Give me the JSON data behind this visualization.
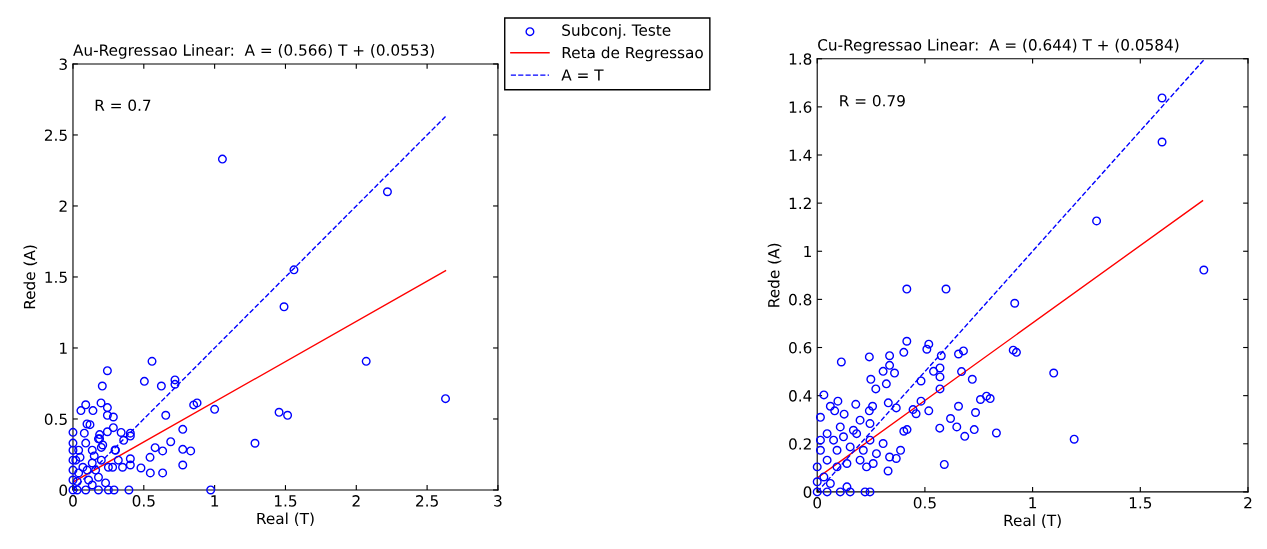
{
  "chart_data": [
    {
      "type": "scatter",
      "title": "Au-Regressao Linear:  A = (0.566) T + (0.0553)",
      "xlabel": "Real (T)",
      "ylabel": "Rede (A)",
      "xlim": [
        0,
        3
      ],
      "ylim": [
        0,
        3
      ],
      "xticks": [
        0,
        0.5,
        1,
        1.5,
        2,
        2.5,
        3
      ],
      "yticks": [
        0,
        0.5,
        1,
        1.5,
        2,
        2.5,
        3
      ],
      "grid": false,
      "legend": "top right",
      "annotations": [
        "R = 0.7"
      ],
      "series": [
        {
          "name": "Subconj. Teste",
          "marker": "circle",
          "color": "#0000ff",
          "x": [
            1.055,
            2.22,
            1.56,
            1.49,
            2.07,
            2.63,
            1.0,
            1.455,
            1.515,
            1.285,
            0.972,
            0.558,
            0.504,
            0.624,
            0.72,
            0.72,
            0.243,
            0.207,
            0.852,
            0.876,
            0.655,
            0.775,
            0.69,
            0.775,
            0.831,
            0.58,
            0.633,
            0.544,
            0.48,
            0.546,
            0.633,
            0.775,
            0.405,
            0.405,
            0.395,
            0.405,
            0.405,
            0.358,
            0.34,
            0.285,
            0.243,
            0.243,
            0.198,
            0.141,
            0.09,
            0.056,
            0.099,
            0.12,
            0.188,
            0.285,
            0.243,
            0.297,
            0.188,
            0.21,
            0,
            0.09,
            0.136,
            0.18,
            0.2,
            0.04,
            0.02,
            0.07,
            0.136,
            0.2,
            0.25,
            0.18,
            0.11,
            0.04,
            0.23,
            0.25,
            0.18,
            0.09,
            0.03,
            0,
            0,
            0,
            0,
            0,
            0,
            0.08,
            0.15,
            0.29,
            0.28,
            0.32,
            0.3,
            0.35,
            0.05,
            0.1,
            0.16,
            0.03,
            0.136
          ],
          "values": [
            2.33,
            2.1,
            1.55,
            1.29,
            0.906,
            0.643,
            0.568,
            0.547,
            0.526,
            0.329,
            0,
            0.906,
            0.765,
            0.732,
            0.775,
            0.744,
            0.84,
            0.732,
            0.599,
            0.613,
            0.526,
            0.427,
            0.34,
            0.286,
            0.275,
            0.298,
            0.275,
            0.23,
            0.155,
            0.12,
            0.12,
            0.176,
            0.22,
            0.176,
            0,
            0.38,
            0.4,
            0.35,
            0.405,
            0.514,
            0.526,
            0.58,
            0.613,
            0.559,
            0.6,
            0.559,
            0.465,
            0.46,
            0.39,
            0.439,
            0.41,
            0.282,
            0.36,
            0.317,
            0.406,
            0.33,
            0.28,
            0.36,
            0.3,
            0.28,
            0.21,
            0.16,
            0.19,
            0.21,
            0.16,
            0.09,
            0.07,
            0.12,
            0.05,
            0,
            0,
            0,
            0,
            0,
            0.07,
            0.14,
            0.21,
            0.28,
            0.33,
            0.4,
            0.24,
            0,
            0.16,
            0.21,
            0.28,
            0.16,
            0.23,
            0.14,
            0.14,
            0.06,
            0.035
          ]
        },
        {
          "name": "Reta de Regressao",
          "type": "line",
          "line_style": "solid",
          "color": "#ff0000",
          "x": [
            0,
            2.63
          ],
          "values": [
            0.055,
            1.544
          ]
        },
        {
          "name": "A = T",
          "type": "line",
          "line_style": "dashed",
          "color": "#0000ff",
          "x": [
            0,
            2.63
          ],
          "values": [
            0,
            2.63
          ]
        }
      ]
    },
    {
      "type": "scatter",
      "title": "Cu-Regressao Linear:  A = (0.644) T + (0.0584)",
      "xlabel": "Real (T)",
      "ylabel": "Rede (A)",
      "xlim": [
        0,
        2
      ],
      "ylim": [
        0,
        1.8
      ],
      "xticks": [
        0,
        0.5,
        1,
        1.5,
        2
      ],
      "yticks": [
        0,
        0.2,
        0.4,
        0.6,
        0.8,
        1,
        1.2,
        1.4,
        1.6,
        1.8
      ],
      "grid": false,
      "annotations": [
        "R = 0.79"
      ],
      "series": [
        {
          "marker": "circle",
          "color": "#0000ff",
          "x": [
            1.601,
            1.601,
            1.297,
            1.795,
            0.917,
            0.416,
            0.598,
            1.098,
            1.193,
            0.91,
            0.925,
            0.416,
            0.518,
            0.509,
            0.402,
            0.336,
            0.242,
            0.112,
            0.656,
            0.679,
            0.576,
            0.57,
            0.57,
            0.54,
            0.67,
            0.72,
            0.482,
            0.336,
            0.306,
            0.359,
            0.249,
            0.272,
            0.321,
            0.57,
            0.758,
            0.786,
            0.803,
            0.656,
            0.482,
            0.518,
            0.459,
            0.445,
            0.735,
            0.619,
            0.648,
            0.569,
            0.729,
            0.685,
            0.832,
            0.417,
            0.402,
            0.59,
            0.33,
            0.367,
            0.257,
            0.242,
            0.179,
            0.096,
            0.061,
            0.031,
            0.015,
            0.081,
            0.125,
            0.329,
            0.387,
            0.046,
            0.076,
            0.122,
            0.153,
            0.183,
            0.214,
            0.245,
            0.275,
            0.306,
            0.015,
            0.046,
            0.092,
            0.138,
            0.199,
            0.26,
            0,
            0.031,
            0.061,
            0,
            0,
            0.046,
            0.107,
            0.153,
            0.222,
            0.245,
            0.138,
            0.092,
            0.015,
            0.107,
            0.168,
            0.199,
            0.245,
            0.229,
            0.336,
            0.367
          ],
          "values": [
            1.637,
            1.454,
            1.126,
            0.922,
            0.784,
            0.843,
            0.843,
            0.494,
            0.219,
            0.589,
            0.58,
            0.626,
            0.614,
            0.593,
            0.58,
            0.566,
            0.561,
            0.54,
            0.573,
            0.586,
            0.566,
            0.515,
            0.478,
            0.501,
            0.5,
            0.468,
            0.461,
            0.526,
            0.501,
            0.494,
            0.468,
            0.428,
            0.449,
            0.428,
            0.384,
            0.398,
            0.388,
            0.356,
            0.377,
            0.337,
            0.325,
            0.342,
            0.33,
            0.305,
            0.27,
            0.265,
            0.259,
            0.231,
            0.245,
            0.259,
            0.252,
            0.114,
            0.37,
            0.349,
            0.356,
            0.337,
            0.364,
            0.377,
            0.356,
            0.403,
            0.31,
            0.337,
            0.323,
            0.087,
            0.173,
            0.242,
            0.215,
            0.229,
            0.187,
            0.242,
            0.173,
            0.215,
            0.159,
            0.201,
            0.173,
            0.132,
            0.104,
            0.118,
            0.132,
            0.118,
            0.104,
            0.062,
            0.035,
            0.042,
            0,
            0,
            0,
            0,
            0,
            0,
            0.021,
            0.173,
            0.215,
            0.27,
            0.256,
            0.298,
            0.284,
            0.104,
            0.145,
            0.139
          ]
        },
        {
          "type": "line",
          "line_style": "solid",
          "color": "#ff0000",
          "x": [
            0,
            1.789
          ],
          "values": [
            0.058,
            1.21
          ]
        },
        {
          "type": "line",
          "line_style": "dashed",
          "color": "#0000ff",
          "x": [
            0,
            1.8
          ],
          "values": [
            0,
            1.8
          ]
        }
      ]
    }
  ]
}
